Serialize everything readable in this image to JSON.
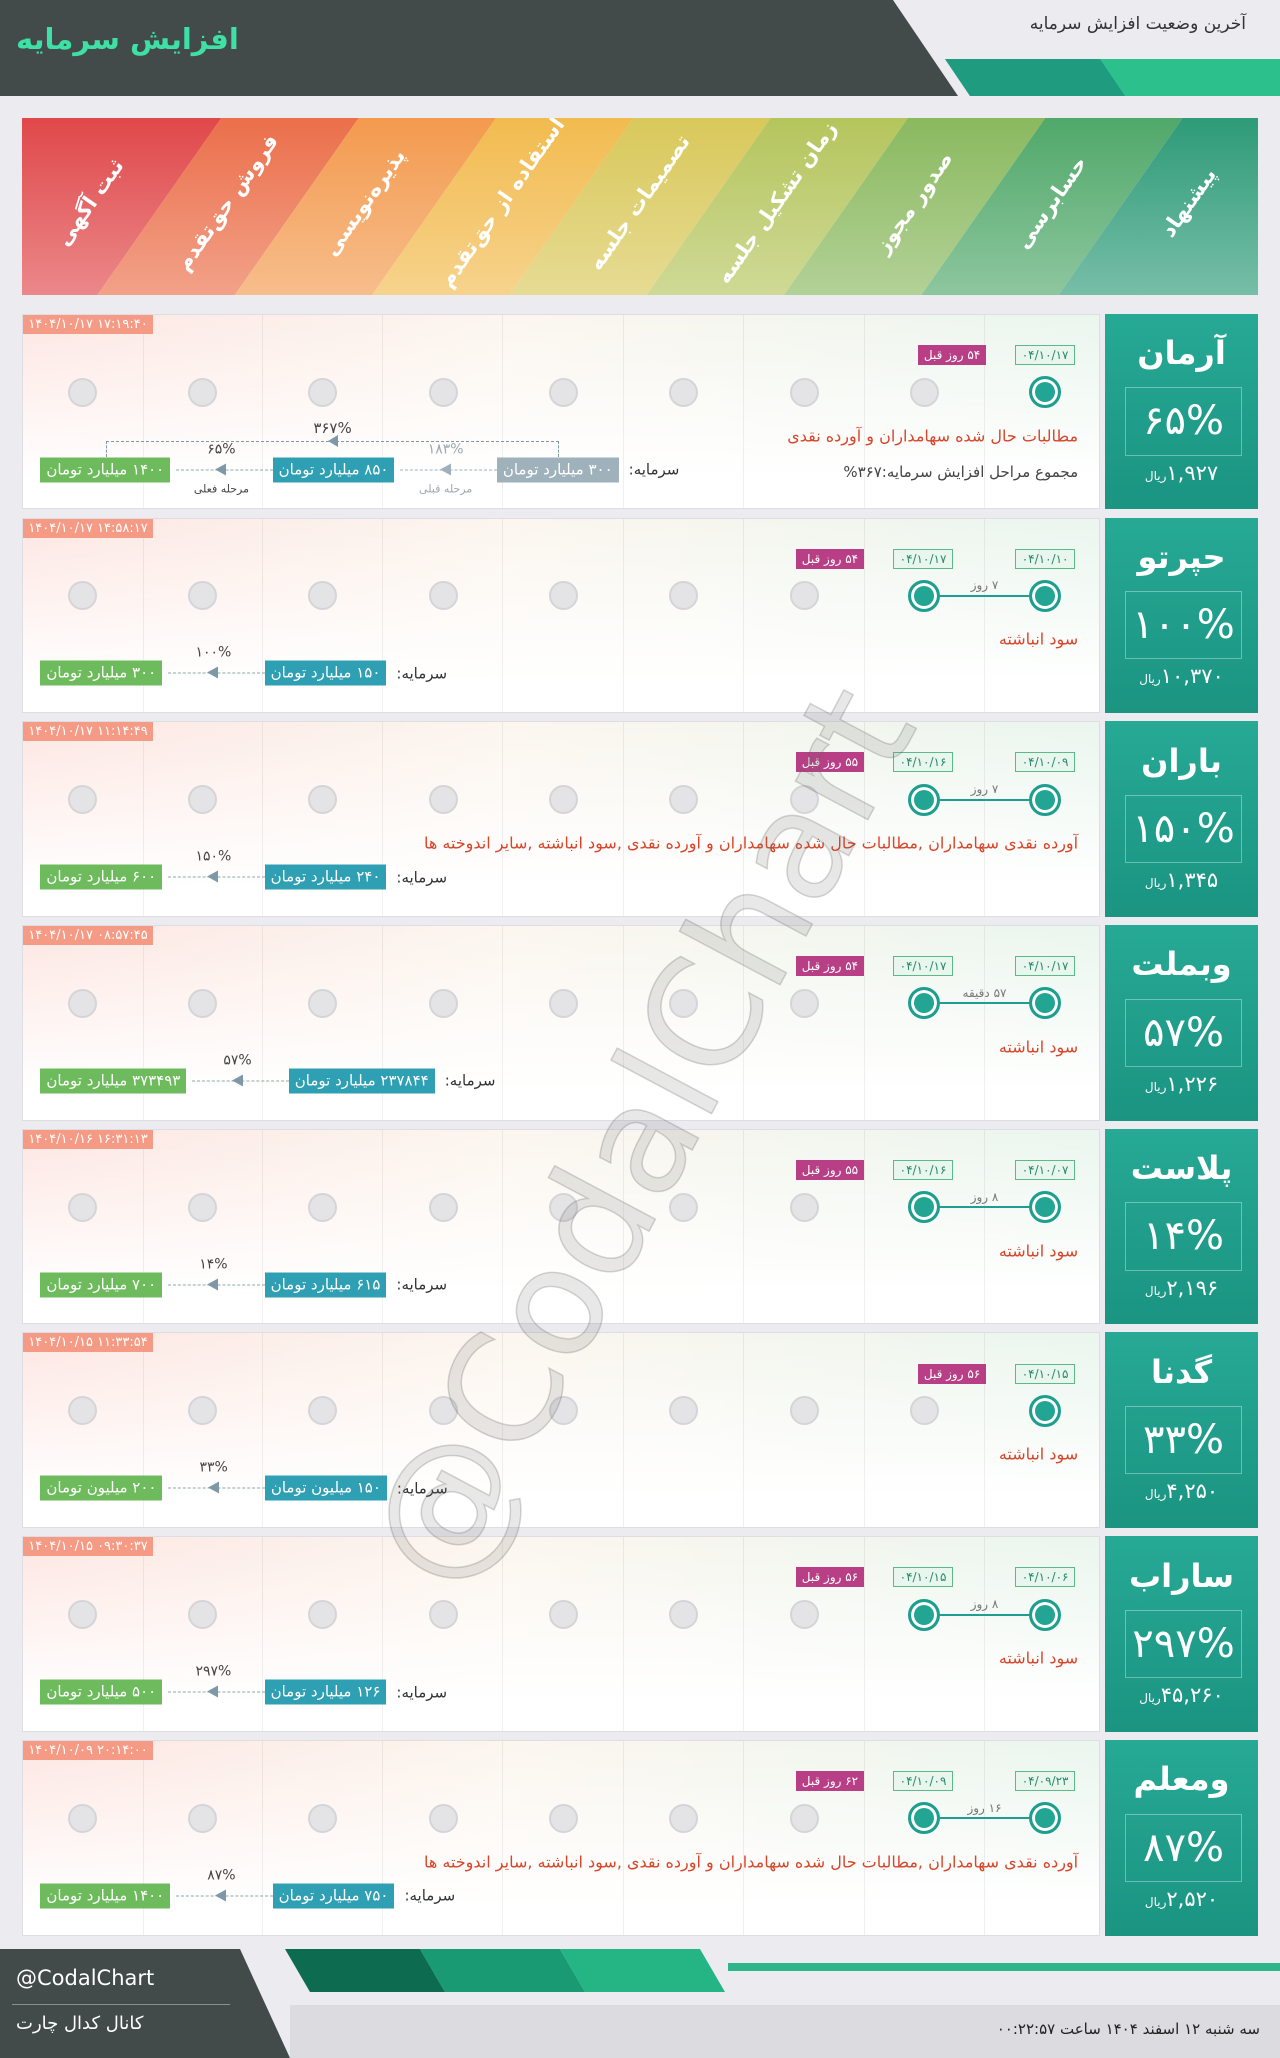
{
  "header": {
    "title": "افزایش سرمایه",
    "subtitle": "آخرین وضعیت افزایش سرمایه"
  },
  "stages": [
    "ثبت آگهی",
    "فروش حق‌تقدم",
    "پذیره‌نویسی",
    "استفاده از حق‌تقدم",
    "تصمیمات جلسه",
    "زمان تشکیل جلسه",
    "صدور مجوز",
    "حسابرسی",
    "پیشنهاد"
  ],
  "capital_label": "سرمایه:",
  "currency": "ریال",
  "companies": [
    {
      "name": "آرمان",
      "percent": "۶۵%",
      "price": "۱,۹۲۷",
      "timestamp": "۱۴۰۴/۱۰/۱۷ ۱۷:۱۹:۴۰",
      "dates": [
        "۰۴/۱۰/۱۷"
      ],
      "days_ago": "۵۴ روز قبل",
      "description": "مطالبات حال شده سهامداران و آورده نقدی",
      "total_text": "مجموع مراحل افزایش سرمایه:۳۶۷%",
      "capital": {
        "steps": [
          "۳۰۰ میلیارد تومان",
          "۸۵۰ میلیارد تومان",
          "۱۴۰۰ میلیارد تومان"
        ],
        "changes": [
          "۱۸۳%",
          "۶۵%"
        ],
        "notes": [
          "مرحله قبلی",
          "مرحله فعلی"
        ],
        "total": "۳۶۷%"
      }
    },
    {
      "name": "حپرتو",
      "percent": "۱۰۰%",
      "price": "۱۰,۳۷۰",
      "timestamp": "۱۴۰۴/۱۰/۱۷ ۱۴:۵۸:۱۷",
      "dates": [
        "۰۴/۱۰/۱۰",
        "۰۴/۱۰/۱۷"
      ],
      "days_ago": "۵۴ روز قبل",
      "gap": "۷ روز",
      "description": "سود انباشته",
      "capital": {
        "steps": [
          "۱۵۰ میلیارد تومان",
          "۳۰۰ میلیارد تومان"
        ],
        "changes": [
          "۱۰۰%"
        ]
      }
    },
    {
      "name": "باران",
      "percent": "۱۵۰%",
      "price": "۱,۳۴۵",
      "timestamp": "۱۴۰۴/۱۰/۱۷ ۱۱:۱۴:۴۹",
      "dates": [
        "۰۴/۱۰/۰۹",
        "۰۴/۱۰/۱۶"
      ],
      "days_ago": "۵۵ روز قبل",
      "gap": "۷ روز",
      "description": "آورده نقدی سهامداران ,مطالبات حال شده سهامداران و آورده نقدی ,سود انباشته ,سایر اندوخته ها",
      "capital": {
        "steps": [
          "۲۴۰ میلیارد تومان",
          "۶۰۰ میلیارد تومان"
        ],
        "changes": [
          "۱۵۰%"
        ]
      }
    },
    {
      "name": "وبملت",
      "percent": "۵۷%",
      "price": "۱,۲۲۶",
      "timestamp": "۱۴۰۴/۱۰/۱۷ ۰۸:۵۷:۴۵",
      "dates": [
        "۰۴/۱۰/۱۷",
        "۰۴/۱۰/۱۷"
      ],
      "days_ago": "۵۴ روز قبل",
      "gap": "۵۷ دقیقه",
      "description": "سود انباشته",
      "capital": {
        "steps": [
          "۲۳۷۸۴۴ میلیارد تومان",
          "۳۷۳۴۹۳ میلیارد تومان"
        ],
        "changes": [
          "۵۷%"
        ]
      }
    },
    {
      "name": "پلاست",
      "percent": "۱۴%",
      "price": "۲,۱۹۶",
      "timestamp": "۱۴۰۴/۱۰/۱۶ ۱۶:۳۱:۱۳",
      "dates": [
        "۰۴/۱۰/۰۷",
        "۰۴/۱۰/۱۶"
      ],
      "days_ago": "۵۵ روز قبل",
      "gap": "۸ روز",
      "description": "سود انباشته",
      "capital": {
        "steps": [
          "۶۱۵ میلیارد تومان",
          "۷۰۰ میلیارد تومان"
        ],
        "changes": [
          "۱۴%"
        ]
      }
    },
    {
      "name": "گدنا",
      "percent": "۳۳%",
      "price": "۴,۲۵۰",
      "timestamp": "۱۴۰۴/۱۰/۱۵ ۱۱:۳۳:۵۴",
      "dates": [
        "۰۴/۱۰/۱۵"
      ],
      "days_ago": "۵۶ روز قبل",
      "description": "سود انباشته",
      "capital": {
        "steps": [
          "۱۵۰ میلیون تومان",
          "۲۰۰ میلیون تومان"
        ],
        "changes": [
          "۳۳%"
        ]
      }
    },
    {
      "name": "ساراب",
      "percent": "۲۹۷%",
      "price": "۴۵,۲۶۰",
      "timestamp": "۱۴۰۴/۱۰/۱۵ ۰۹:۳۰:۳۷",
      "dates": [
        "۰۴/۱۰/۰۶",
        "۰۴/۱۰/۱۵"
      ],
      "days_ago": "۵۶ روز قبل",
      "gap": "۸ روز",
      "description": "سود انباشته",
      "capital": {
        "steps": [
          "۱۲۶ میلیارد تومان",
          "۵۰۰ میلیارد تومان"
        ],
        "changes": [
          "۲۹۷%"
        ]
      }
    },
    {
      "name": "ومعلم",
      "percent": "۸۷%",
      "price": "۲,۵۲۰",
      "timestamp": "۱۴۰۴/۱۰/۰۹ ۲۰:۱۴:۰۰",
      "dates": [
        "۰۴/۰۹/۲۳",
        "۰۴/۱۰/۰۹"
      ],
      "days_ago": "۶۲ روز قبل",
      "gap": "۱۶ روز",
      "description": "آورده نقدی سهامداران ,مطالبات حال شده سهامداران و آورده نقدی ,سود انباشته ,سایر اندوخته ها",
      "capital": {
        "steps": [
          "۷۵۰ میلیارد تومان",
          "۱۴۰۰ میلیارد تومان"
        ],
        "changes": [
          "۸۷%"
        ]
      }
    }
  ],
  "watermark": "@CodalChart",
  "footer": {
    "handle": "@CodalChart",
    "channel": "کانال کدال چارت",
    "date": "سه شنبه ۱۲ اسفند ۱۴۰۴ ساعت ۰۰:۲۲:۵۷"
  }
}
